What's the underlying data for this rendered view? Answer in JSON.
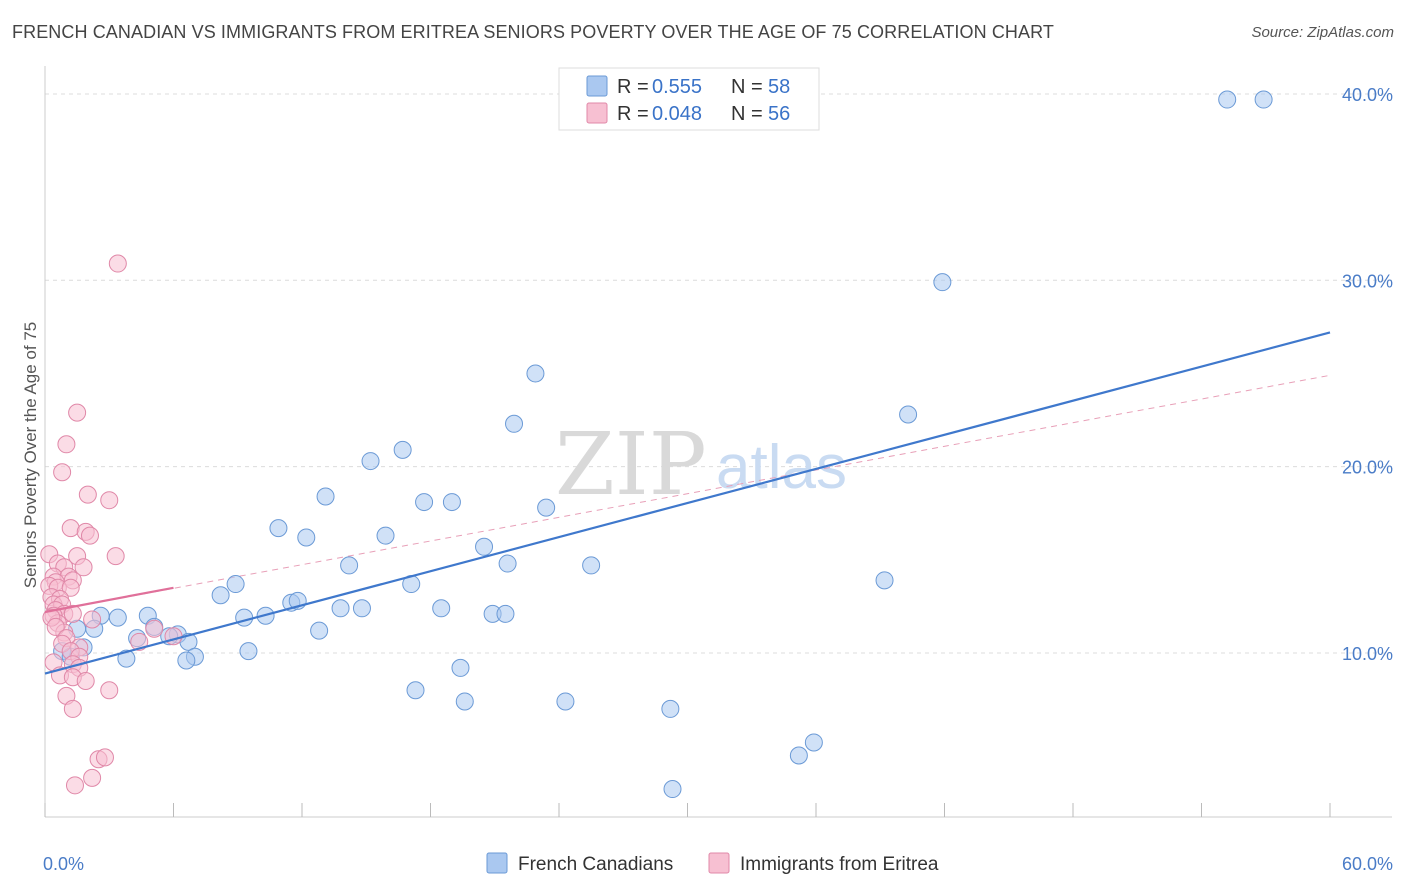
{
  "title": "FRENCH CANADIAN VS IMMIGRANTS FROM ERITREA SENIORS POVERTY OVER THE AGE OF 75 CORRELATION CHART",
  "source": "Source: ZipAtlas.com",
  "watermark": {
    "zip": "ZIP",
    "atlas": "atlas"
  },
  "legend": [
    {
      "r_label": "R = ",
      "r_value": "0.555",
      "n_label": "N = ",
      "n_value": "58",
      "color": "#aac8f0",
      "edge": "#6b9ad6"
    },
    {
      "r_label": "R = ",
      "r_value": "0.048",
      "n_label": "N = ",
      "n_value": "56",
      "color": "#f7c0d2",
      "edge": "#e088a8"
    }
  ],
  "chart_data": {
    "type": "scatter",
    "title": "FRENCH CANADIAN VS IMMIGRANTS FROM ERITREA SENIORS POVERTY OVER THE AGE OF 75 CORRELATION CHART",
    "xlabel": "",
    "ylabel": "Seniors Poverty Over the Age of 75",
    "xlim": [
      0,
      60
    ],
    "ylim": [
      1.2,
      41.5
    ],
    "x_tick_labels": [
      "0.0%",
      "60.0%"
    ],
    "y_ticks": [
      10,
      20,
      30,
      40
    ],
    "y_tick_labels": [
      "10.0%",
      "20.0%",
      "30.0%",
      "40.0%"
    ],
    "grid": true,
    "legend_position": "top-center",
    "series": [
      {
        "name": "French Canadians",
        "color": "#aac8f0",
        "edge": "#6b9ad6",
        "trend": {
          "x": [
            0,
            60
          ],
          "y": [
            8.9,
            27.2
          ],
          "color": "#3f78cc",
          "style": "solid"
        },
        "points": [
          [
            55.2,
            39.7
          ],
          [
            56.9,
            39.7
          ],
          [
            41.9,
            29.9
          ],
          [
            22.9,
            25.0
          ],
          [
            21.9,
            22.3
          ],
          [
            40.3,
            22.8
          ],
          [
            16.7,
            20.9
          ],
          [
            15.2,
            20.3
          ],
          [
            13.1,
            18.4
          ],
          [
            17.7,
            18.1
          ],
          [
            19.0,
            18.1
          ],
          [
            23.4,
            17.8
          ],
          [
            10.9,
            16.7
          ],
          [
            12.2,
            16.2
          ],
          [
            15.9,
            16.3
          ],
          [
            20.5,
            15.7
          ],
          [
            21.6,
            14.8
          ],
          [
            25.5,
            14.7
          ],
          [
            14.2,
            14.7
          ],
          [
            39.2,
            13.9
          ],
          [
            17.1,
            13.7
          ],
          [
            8.9,
            13.7
          ],
          [
            8.2,
            13.1
          ],
          [
            11.5,
            12.7
          ],
          [
            11.8,
            12.8
          ],
          [
            13.8,
            12.4
          ],
          [
            14.8,
            12.4
          ],
          [
            18.5,
            12.4
          ],
          [
            20.9,
            12.1
          ],
          [
            21.5,
            12.1
          ],
          [
            10.3,
            12.0
          ],
          [
            9.3,
            11.9
          ],
          [
            4.8,
            12.0
          ],
          [
            3.4,
            11.9
          ],
          [
            2.6,
            12.0
          ],
          [
            2.3,
            11.3
          ],
          [
            1.5,
            11.3
          ],
          [
            5.1,
            11.4
          ],
          [
            6.2,
            11.0
          ],
          [
            12.8,
            11.2
          ],
          [
            4.3,
            10.8
          ],
          [
            5.8,
            10.9
          ],
          [
            6.7,
            10.6
          ],
          [
            1.8,
            10.3
          ],
          [
            0.8,
            10.1
          ],
          [
            7.0,
            9.8
          ],
          [
            6.6,
            9.6
          ],
          [
            9.5,
            10.1
          ],
          [
            3.8,
            9.7
          ],
          [
            19.4,
            9.2
          ],
          [
            17.3,
            8.0
          ],
          [
            19.6,
            7.4
          ],
          [
            24.3,
            7.4
          ],
          [
            29.2,
            7.0
          ],
          [
            35.2,
            4.5
          ],
          [
            35.9,
            5.2
          ],
          [
            29.3,
            2.7
          ],
          [
            1.2,
            9.8
          ]
        ]
      },
      {
        "name": "Immigrants from Eritrea",
        "color": "#f7c0d2",
        "edge": "#e088a8",
        "trend": {
          "x": [
            0,
            6
          ],
          "y": [
            12.2,
            13.5
          ],
          "color": "#e0709a",
          "style": "solid"
        },
        "trend_extended": {
          "x": [
            0,
            60
          ],
          "y": [
            12.2,
            24.9
          ],
          "color": "#e8a0b8",
          "style": "dashed"
        },
        "points": [
          [
            3.4,
            30.9
          ],
          [
            1.5,
            22.9
          ],
          [
            1.0,
            21.2
          ],
          [
            0.8,
            19.7
          ],
          [
            2.0,
            18.5
          ],
          [
            3.0,
            18.2
          ],
          [
            1.2,
            16.7
          ],
          [
            1.9,
            16.5
          ],
          [
            2.1,
            16.3
          ],
          [
            0.2,
            15.3
          ],
          [
            1.5,
            15.2
          ],
          [
            3.3,
            15.2
          ],
          [
            0.6,
            14.8
          ],
          [
            0.9,
            14.6
          ],
          [
            1.8,
            14.6
          ],
          [
            0.4,
            14.1
          ],
          [
            1.1,
            14.1
          ],
          [
            0.5,
            13.8
          ],
          [
            1.3,
            13.9
          ],
          [
            0.2,
            13.6
          ],
          [
            0.6,
            13.5
          ],
          [
            1.2,
            13.5
          ],
          [
            0.3,
            13.0
          ],
          [
            0.7,
            12.9
          ],
          [
            0.4,
            12.6
          ],
          [
            0.8,
            12.6
          ],
          [
            0.5,
            12.3
          ],
          [
            0.9,
            12.1
          ],
          [
            0.4,
            12.0
          ],
          [
            1.3,
            12.1
          ],
          [
            0.6,
            11.6
          ],
          [
            0.3,
            11.9
          ],
          [
            2.2,
            11.8
          ],
          [
            0.9,
            11.1
          ],
          [
            0.5,
            11.4
          ],
          [
            1.0,
            10.8
          ],
          [
            0.8,
            10.5
          ],
          [
            1.6,
            10.3
          ],
          [
            1.2,
            10.1
          ],
          [
            1.6,
            9.8
          ],
          [
            0.4,
            9.5
          ],
          [
            1.3,
            9.4
          ],
          [
            1.6,
            9.2
          ],
          [
            0.7,
            8.8
          ],
          [
            1.3,
            8.7
          ],
          [
            1.9,
            8.5
          ],
          [
            3.0,
            8.0
          ],
          [
            1.0,
            7.7
          ],
          [
            1.3,
            7.0
          ],
          [
            2.5,
            4.3
          ],
          [
            2.8,
            4.4
          ],
          [
            2.2,
            3.3
          ],
          [
            1.4,
            2.9
          ],
          [
            4.4,
            10.6
          ],
          [
            5.1,
            11.3
          ],
          [
            6.0,
            10.9
          ]
        ]
      }
    ]
  }
}
